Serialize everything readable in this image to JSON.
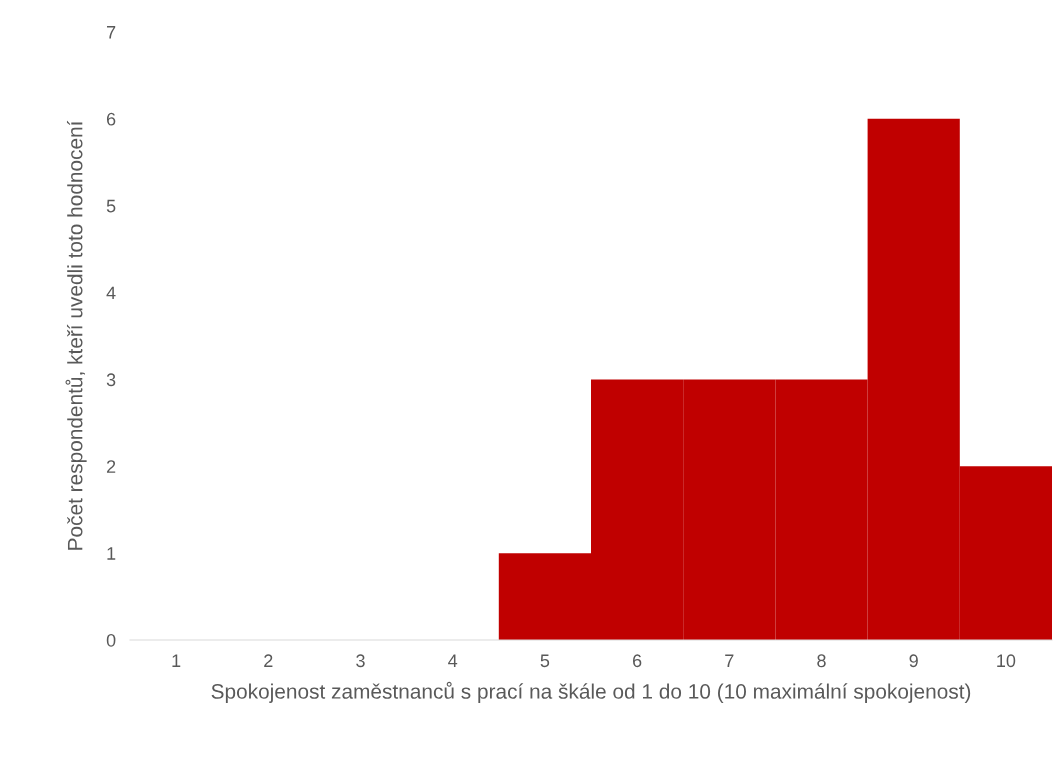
{
  "chart_data": {
    "type": "bar",
    "xlabel": "Spokojenost zaměstnanců s prací na škále od 1 do 10 (10 maximální spokojenost)",
    "ylabel": "Počet respondentů, kteří uvedli toto hodnocení",
    "categories": [
      "1",
      "2",
      "3",
      "4",
      "5",
      "6",
      "7",
      "8",
      "9",
      "10"
    ],
    "values": [
      0,
      0,
      0,
      0,
      1,
      3,
      3,
      3,
      6,
      2
    ],
    "color": "#c00000",
    "ylim": [
      0,
      7
    ],
    "yticks": [
      0,
      1,
      2,
      3,
      4,
      5,
      6,
      7
    ],
    "grid": false,
    "legend": false
  }
}
